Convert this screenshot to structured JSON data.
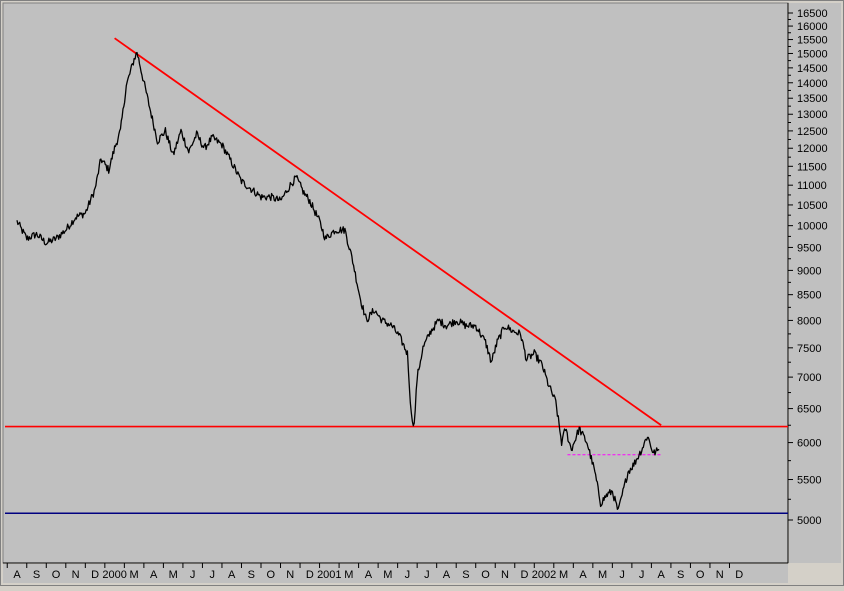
{
  "chart_data": {
    "type": "line",
    "title": "",
    "xlabel": "",
    "ylabel": "",
    "ylim": [
      4700,
      16650
    ],
    "y_ticks": [
      5000,
      5500,
      6000,
      6500,
      7000,
      7500,
      8000,
      8500,
      9000,
      9500,
      10000,
      10500,
      11000,
      11500,
      12000,
      12500,
      13000,
      13500,
      14000,
      14500,
      15000,
      15500,
      16000,
      16500
    ],
    "y_scale": "log",
    "y_axis_side": "right",
    "grid": false,
    "legend": "none",
    "month_labels": [
      "A",
      "S",
      "O",
      "N",
      "D",
      "2000",
      "M",
      "A",
      "M",
      "J",
      "J",
      "A",
      "S",
      "O",
      "N",
      "D",
      "2001",
      "M",
      "A",
      "M",
      "J",
      "J",
      "A",
      "S",
      "O",
      "N",
      "D",
      "2002",
      "M",
      "A",
      "M",
      "J",
      "J",
      "A",
      "S",
      "O",
      "N",
      "D"
    ],
    "series": [
      {
        "color": "#000000",
        "points": [
          {
            "m": 0.0,
            "v": 10100
          },
          {
            "m": 0.5,
            "v": 9700
          },
          {
            "m": 1.0,
            "v": 9800
          },
          {
            "m": 1.5,
            "v": 9600
          },
          {
            "m": 2.0,
            "v": 9700
          },
          {
            "m": 2.5,
            "v": 9900
          },
          {
            "m": 3.0,
            "v": 10200
          },
          {
            "m": 3.5,
            "v": 10300
          },
          {
            "m": 4.0,
            "v": 10900
          },
          {
            "m": 4.3,
            "v": 11700
          },
          {
            "m": 4.7,
            "v": 11400
          },
          {
            "m": 5.0,
            "v": 12000
          },
          {
            "m": 5.3,
            "v": 12500
          },
          {
            "m": 5.6,
            "v": 13900
          },
          {
            "m": 6.0,
            "v": 14800
          },
          {
            "m": 6.15,
            "v": 15050
          },
          {
            "m": 6.4,
            "v": 14300
          },
          {
            "m": 6.8,
            "v": 13200
          },
          {
            "m": 7.2,
            "v": 12200
          },
          {
            "m": 7.6,
            "v": 12500
          },
          {
            "m": 8.0,
            "v": 11800
          },
          {
            "m": 8.4,
            "v": 12500
          },
          {
            "m": 8.8,
            "v": 11900
          },
          {
            "m": 9.2,
            "v": 12400
          },
          {
            "m": 9.6,
            "v": 12000
          },
          {
            "m": 10.0,
            "v": 12300
          },
          {
            "m": 10.5,
            "v": 12100
          },
          {
            "m": 11.0,
            "v": 11600
          },
          {
            "m": 11.5,
            "v": 11100
          },
          {
            "m": 12.0,
            "v": 10900
          },
          {
            "m": 12.5,
            "v": 10700
          },
          {
            "m": 13.0,
            "v": 10700
          },
          {
            "m": 13.5,
            "v": 10600
          },
          {
            "m": 14.0,
            "v": 11000
          },
          {
            "m": 14.3,
            "v": 11200
          },
          {
            "m": 14.7,
            "v": 10800
          },
          {
            "m": 15.0,
            "v": 10600
          },
          {
            "m": 15.5,
            "v": 10100
          },
          {
            "m": 15.8,
            "v": 9700
          },
          {
            "m": 16.3,
            "v": 9900
          },
          {
            "m": 16.8,
            "v": 9900
          },
          {
            "m": 17.2,
            "v": 9200
          },
          {
            "m": 17.6,
            "v": 8400
          },
          {
            "m": 17.9,
            "v": 8000
          },
          {
            "m": 18.3,
            "v": 8200
          },
          {
            "m": 18.7,
            "v": 8000
          },
          {
            "m": 19.2,
            "v": 7900
          },
          {
            "m": 19.6,
            "v": 7700
          },
          {
            "m": 20.0,
            "v": 7400
          },
          {
            "m": 20.2,
            "v": 6400
          },
          {
            "m": 20.35,
            "v": 6250
          },
          {
            "m": 20.5,
            "v": 7000
          },
          {
            "m": 20.8,
            "v": 7500
          },
          {
            "m": 21.2,
            "v": 7800
          },
          {
            "m": 21.6,
            "v": 8000
          },
          {
            "m": 22.0,
            "v": 7900
          },
          {
            "m": 22.5,
            "v": 8000
          },
          {
            "m": 23.0,
            "v": 7900
          },
          {
            "m": 23.5,
            "v": 7900
          },
          {
            "m": 24.0,
            "v": 7600
          },
          {
            "m": 24.3,
            "v": 7250
          },
          {
            "m": 24.6,
            "v": 7600
          },
          {
            "m": 25.0,
            "v": 7900
          },
          {
            "m": 25.4,
            "v": 7800
          },
          {
            "m": 25.8,
            "v": 7750
          },
          {
            "m": 26.1,
            "v": 7300
          },
          {
            "m": 26.5,
            "v": 7400
          },
          {
            "m": 26.9,
            "v": 7200
          },
          {
            "m": 27.2,
            "v": 6900
          },
          {
            "m": 27.6,
            "v": 6600
          },
          {
            "m": 27.9,
            "v": 6000
          },
          {
            "m": 28.1,
            "v": 6200
          },
          {
            "m": 28.4,
            "v": 5900
          },
          {
            "m": 28.8,
            "v": 6200
          },
          {
            "m": 29.2,
            "v": 6000
          },
          {
            "m": 29.6,
            "v": 5600
          },
          {
            "m": 29.9,
            "v": 5200
          },
          {
            "m": 30.2,
            "v": 5300
          },
          {
            "m": 30.5,
            "v": 5350
          },
          {
            "m": 30.8,
            "v": 5100
          },
          {
            "m": 31.0,
            "v": 5300
          },
          {
            "m": 31.3,
            "v": 5600
          },
          {
            "m": 31.6,
            "v": 5700
          },
          {
            "m": 32.0,
            "v": 5900
          },
          {
            "m": 32.3,
            "v": 6100
          },
          {
            "m": 32.6,
            "v": 5850
          },
          {
            "m": 32.9,
            "v": 5900
          }
        ]
      }
    ],
    "lines": [
      {
        "kind": "trend",
        "color": "#ff0000",
        "from": {
          "m": 5.0,
          "v": 15550
        },
        "to": {
          "m": 33.0,
          "v": 6250
        }
      },
      {
        "kind": "horizontal",
        "color": "#ff0000",
        "value": 6230
      },
      {
        "kind": "horizontal",
        "color": "#000080",
        "value": 5080
      },
      {
        "kind": "horizontal-dashed",
        "color": "#ff00ff",
        "value": 5830,
        "from_m": 28.2,
        "to_m": 33.0
      }
    ]
  }
}
